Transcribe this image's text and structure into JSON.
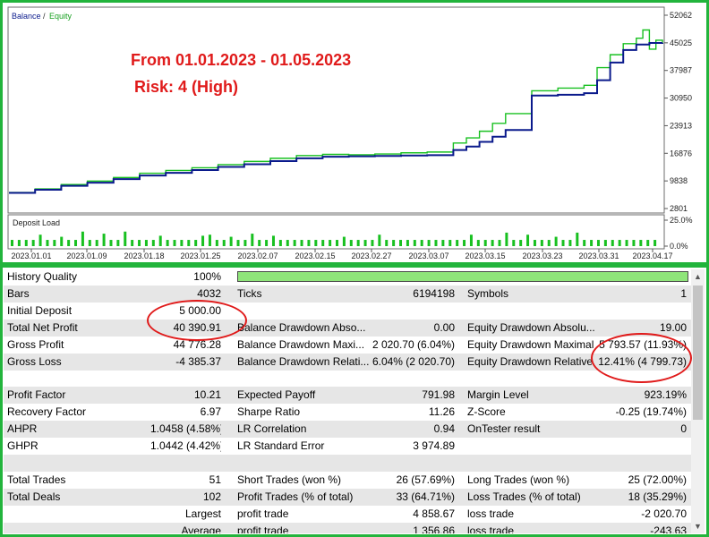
{
  "chart_data": [
    {
      "type": "line",
      "legend": [
        "Balance",
        "Equity"
      ],
      "y_ticks": [
        "52062",
        "45025",
        "37987",
        "30950",
        "23913",
        "16876",
        "9838",
        "2801"
      ],
      "x_ticks": [
        "2023.01.01",
        "2023.01.09",
        "2023.01.18",
        "2023.01.25",
        "2023.02.07",
        "2023.02.15",
        "2023.02.27",
        "2023.03.07",
        "2023.03.15",
        "2023.03.23",
        "2023.03.31",
        "2023.04.17"
      ],
      "ylim": [
        2801,
        52062
      ],
      "series": [
        {
          "name": "Balance",
          "color": "#0a1a8c",
          "x": [
            0,
            0.04,
            0.08,
            0.12,
            0.16,
            0.2,
            0.24,
            0.28,
            0.32,
            0.36,
            0.4,
            0.44,
            0.48,
            0.52,
            0.56,
            0.6,
            0.64,
            0.68,
            0.7,
            0.72,
            0.74,
            0.76,
            0.8,
            0.84,
            0.88,
            0.9,
            0.92,
            0.94,
            0.96,
            0.98,
            1.0
          ],
          "values": [
            6800,
            7600,
            8600,
            9400,
            10300,
            11200,
            11900,
            12600,
            13400,
            14100,
            14900,
            15600,
            16000,
            16100,
            16200,
            16300,
            16400,
            17700,
            18600,
            19800,
            21100,
            22800,
            31600,
            31800,
            32200,
            35500,
            40000,
            43200,
            44600,
            45000,
            45025
          ]
        },
        {
          "name": "Equity",
          "color": "#18c020",
          "x": [
            0,
            0.04,
            0.08,
            0.12,
            0.16,
            0.2,
            0.24,
            0.28,
            0.32,
            0.36,
            0.4,
            0.44,
            0.48,
            0.52,
            0.56,
            0.6,
            0.64,
            0.68,
            0.7,
            0.72,
            0.74,
            0.76,
            0.8,
            0.84,
            0.88,
            0.9,
            0.92,
            0.94,
            0.96,
            0.97,
            0.98,
            0.99,
            1.0
          ],
          "values": [
            6900,
            7800,
            8900,
            9800,
            10700,
            11800,
            12500,
            13200,
            14000,
            14800,
            15600,
            16300,
            16600,
            16500,
            16700,
            17000,
            17200,
            19500,
            20800,
            22500,
            24500,
            27000,
            32800,
            33500,
            34200,
            38700,
            42000,
            44800,
            46200,
            48300,
            43400,
            45700,
            45025
          ]
        }
      ]
    },
    {
      "type": "bar",
      "title": "Deposit Load",
      "y_ticks": [
        "25.0%",
        "0.0%"
      ],
      "ylim": [
        0,
        25
      ],
      "values": [
        6,
        6,
        6,
        6,
        11,
        6,
        6,
        9,
        6,
        6,
        14,
        6,
        6,
        12,
        6,
        6,
        14,
        6,
        6,
        6,
        6,
        10,
        6,
        6,
        6,
        6,
        6,
        10,
        11,
        6,
        6,
        9,
        6,
        6,
        12,
        6,
        6,
        10,
        6,
        6,
        6,
        6,
        6,
        6,
        6,
        6,
        6,
        9,
        6,
        6,
        6,
        6,
        11,
        6,
        6,
        6,
        6,
        6,
        6,
        6,
        6,
        6,
        6,
        6,
        6,
        11,
        6,
        6,
        6,
        6,
        13,
        6,
        6,
        11,
        6,
        6,
        6,
        9,
        6,
        6,
        13,
        6,
        6,
        6,
        6,
        6,
        6,
        6,
        6,
        6,
        6,
        6
      ]
    }
  ],
  "chart": {
    "legend_balance": "Balance",
    "legend_sep": "/",
    "legend_equity": "Equity",
    "annotation_line1": "From  01.01.2023 - 01.05.2023",
    "annotation_line2": "Risk: 4  (High)",
    "deposit_load_title": "Deposit Load",
    "colors": {
      "balance": "#0a1a8c",
      "equity": "#18c020",
      "annotation": "#e01a1a",
      "bars": "#18c020",
      "frame": "#22b43c"
    }
  },
  "report": {
    "history_quality": {
      "label": "History Quality",
      "value": "100%"
    },
    "rows": [
      [
        {
          "label": "Bars",
          "value": "4032"
        },
        {
          "label": "Ticks",
          "value": "6194198"
        },
        {
          "label": "Symbols",
          "value": "1"
        }
      ],
      [
        {
          "label": "Initial Deposit",
          "value": "5 000.00"
        },
        {
          "label": "",
          "value": ""
        },
        {
          "label": "",
          "value": ""
        }
      ],
      [
        {
          "label": "Total Net Profit",
          "value": "40 390.91"
        },
        {
          "label": "Balance Drawdown Abso...",
          "value": "0.00"
        },
        {
          "label": "Equity Drawdown Absolu...",
          "value": "19.00"
        }
      ],
      [
        {
          "label": "Gross Profit",
          "value": "44 776.28"
        },
        {
          "label": "Balance Drawdown Maxi...",
          "value": "2 020.70 (6.04%)"
        },
        {
          "label": "Equity Drawdown Maximal",
          "value": "5 793.57 (11.93%)"
        }
      ],
      [
        {
          "label": "Gross Loss",
          "value": "-4 385.37"
        },
        {
          "label": "Balance Drawdown Relati...",
          "value": "6.04% (2 020.70)"
        },
        {
          "label": "Equity Drawdown Relative",
          "value": "12.41% (4 799.73)"
        }
      ],
      [
        {
          "label": "",
          "value": ""
        },
        {
          "label": "",
          "value": ""
        },
        {
          "label": "",
          "value": ""
        }
      ],
      [
        {
          "label": "Profit Factor",
          "value": "10.21"
        },
        {
          "label": "Expected Payoff",
          "value": "791.98"
        },
        {
          "label": "Margin Level",
          "value": "923.19%"
        }
      ],
      [
        {
          "label": "Recovery Factor",
          "value": "6.97"
        },
        {
          "label": "Sharpe Ratio",
          "value": "11.26"
        },
        {
          "label": "Z-Score",
          "value": "-0.25 (19.74%)"
        }
      ],
      [
        {
          "label": "AHPR",
          "value": "1.0458 (4.58%)"
        },
        {
          "label": "LR Correlation",
          "value": "0.94"
        },
        {
          "label": "OnTester result",
          "value": "0"
        }
      ],
      [
        {
          "label": "GHPR",
          "value": "1.0442 (4.42%)"
        },
        {
          "label": "LR Standard Error",
          "value": "3 974.89"
        },
        {
          "label": "",
          "value": ""
        }
      ],
      [
        {
          "label": "",
          "value": ""
        },
        {
          "label": "",
          "value": ""
        },
        {
          "label": "",
          "value": ""
        }
      ],
      [
        {
          "label": "Total Trades",
          "value": "51"
        },
        {
          "label": "Short Trades (won %)",
          "value": "26 (57.69%)"
        },
        {
          "label": "Long Trades (won %)",
          "value": "25 (72.00%)"
        }
      ],
      [
        {
          "label": "Total Deals",
          "value": "102"
        },
        {
          "label": "Profit Trades (% of total)",
          "value": "33 (64.71%)"
        },
        {
          "label": "Loss Trades (% of total)",
          "value": "18 (35.29%)"
        }
      ],
      [
        {
          "label": "",
          "value": "Largest"
        },
        {
          "label": "profit trade",
          "value": "4 858.67"
        },
        {
          "label": "loss trade",
          "value": "-2 020.70"
        }
      ],
      [
        {
          "label": "",
          "value": "Average"
        },
        {
          "label": "profit trade",
          "value": "1 356.86"
        },
        {
          "label": "loss trade",
          "value": "-243.63"
        }
      ]
    ]
  }
}
